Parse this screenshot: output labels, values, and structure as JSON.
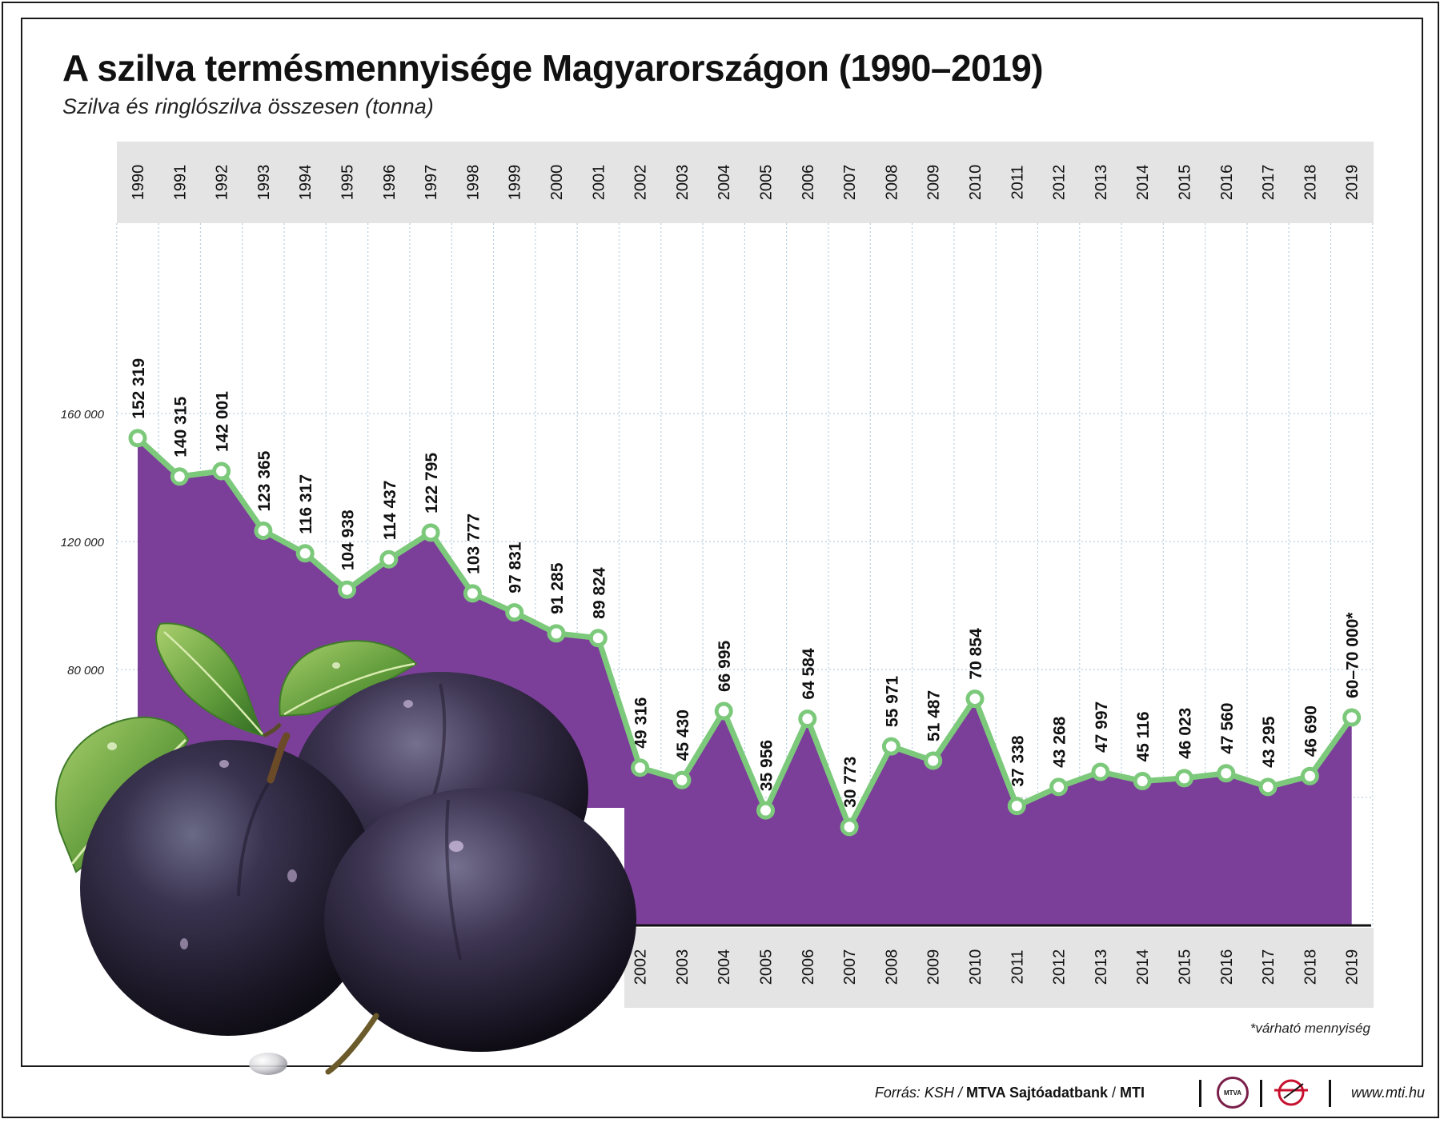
{
  "title": "A szilva termésmennyisége Magyarországon (1990–2019)",
  "subtitle": "Szilva és ringlószilva összesen (tonna)",
  "footnote": "*várható mennyiség",
  "credits": {
    "source_prefix": "Forrás: KSH / ",
    "source_bank": "MTVA Sajtóadatbank",
    "source_sep": " / ",
    "source_mti": "MTI",
    "mtva_logo_text": "MTVA",
    "website": "www.mti.hu"
  },
  "colors": {
    "area_fill": "#7b3f99",
    "line": "#7cc97b",
    "header_band": "#e4e4e4",
    "grid": "#b8cfe0"
  },
  "illustration": "plums-with-leaves",
  "chart_data": {
    "type": "area",
    "title": "A szilva termésmennyisége Magyarországon (1990–2019)",
    "subtitle": "Szilva és ringlószilva összesen (tonna)",
    "xlabel": "",
    "ylabel": "",
    "ylim": [
      0,
      176000
    ],
    "y_ticks": [
      {
        "value": 80000,
        "label": "80 000"
      },
      {
        "value": 120000,
        "label": "120 000"
      },
      {
        "value": 160000,
        "label": "160 000"
      }
    ],
    "y_gridlines": [
      40000,
      80000,
      120000,
      160000
    ],
    "categories": [
      "1990",
      "1991",
      "1992",
      "1993",
      "1994",
      "1995",
      "1996",
      "1997",
      "1998",
      "1999",
      "2000",
      "2001",
      "2002",
      "2003",
      "2004",
      "2005",
      "2006",
      "2007",
      "2008",
      "2009",
      "2010",
      "2011",
      "2012",
      "2013",
      "2014",
      "2015",
      "2016",
      "2017",
      "2018",
      "2019"
    ],
    "series": [
      {
        "values": [
          152319,
          140315,
          142001,
          123365,
          116317,
          104938,
          114437,
          122795,
          103777,
          97831,
          91285,
          89824,
          49316,
          45430,
          66995,
          35956,
          64584,
          30773,
          55971,
          51487,
          70854,
          37338,
          43268,
          47997,
          45116,
          46023,
          47560,
          43295,
          46690,
          65000
        ],
        "data_labels": [
          "152 319",
          "140 315",
          "142 001",
          "123 365",
          "116 317",
          "104 938",
          "114 437",
          "122 795",
          "103 777",
          "97 831",
          "91 285",
          "89 824",
          "49 316",
          "45 430",
          "66 995",
          "35 956",
          "64 584",
          "30 773",
          "55 971",
          "51 487",
          "70 854",
          "37 338",
          "43 268",
          "47 997",
          "45 116",
          "46 023",
          "47 560",
          "43 295",
          "46 690",
          "60–70 000*"
        ]
      }
    ],
    "grid": true,
    "category_labels_position": "top and bottom"
  }
}
